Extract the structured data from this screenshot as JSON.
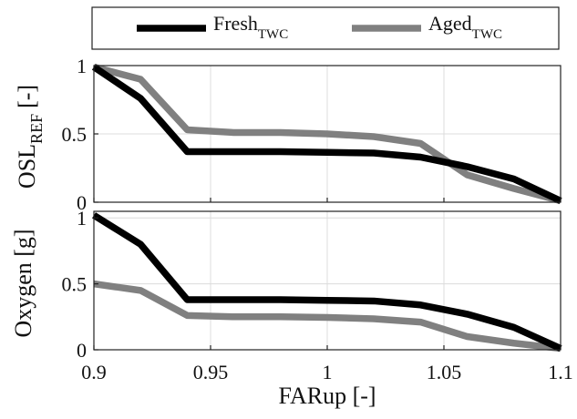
{
  "figure": {
    "legend": {
      "entries": [
        {
          "base": "Fresh",
          "sub": "TWC",
          "color": "#000000"
        },
        {
          "base": "Aged",
          "sub": "TWC",
          "color": "#808080"
        }
      ]
    },
    "xlabel": "FARup [-]"
  },
  "chart_data": [
    {
      "type": "line",
      "title": "",
      "xlabel": "",
      "ylabel": "OSL",
      "ylabel_sub": "REF",
      "ylabel_suffix": "[-]",
      "xlim": [
        0.9,
        1.1
      ],
      "ylim": [
        0,
        1
      ],
      "xticks": [
        0.9,
        0.95,
        1.0,
        1.05,
        1.1
      ],
      "xtick_labels": [
        "",
        "",
        "",
        "",
        ""
      ],
      "yticks": [
        0,
        0.5,
        1
      ],
      "ytick_labels": [
        "0",
        "0.5",
        "1"
      ],
      "grid": true,
      "legend_position": "above",
      "x": [
        0.9,
        0.92,
        0.94,
        0.96,
        0.98,
        1.0,
        1.02,
        1.04,
        1.06,
        1.08,
        1.1
      ],
      "series": [
        {
          "name": "Fresh TWC",
          "color": "#000000",
          "values": [
            0.99,
            0.76,
            0.37,
            0.37,
            0.37,
            0.365,
            0.36,
            0.33,
            0.26,
            0.17,
            0.01
          ]
        },
        {
          "name": "Aged TWC",
          "color": "#808080",
          "values": [
            0.99,
            0.9,
            0.53,
            0.51,
            0.51,
            0.5,
            0.48,
            0.43,
            0.2,
            0.1,
            0.01
          ]
        }
      ]
    },
    {
      "type": "line",
      "title": "",
      "xlabel": "FARup [-]",
      "ylabel": "Oxygen [g]",
      "xlim": [
        0.9,
        1.1
      ],
      "ylim": [
        0,
        1.05
      ],
      "xticks": [
        0.9,
        0.95,
        1.0,
        1.05,
        1.1
      ],
      "xtick_labels": [
        "0.9",
        "0.95",
        "1",
        "1.05",
        "1.1"
      ],
      "yticks": [
        0,
        0.5,
        1
      ],
      "ytick_labels": [
        "0",
        "0.5",
        "1"
      ],
      "grid": true,
      "x": [
        0.9,
        0.92,
        0.94,
        0.96,
        0.98,
        1.0,
        1.02,
        1.04,
        1.06,
        1.08,
        1.1
      ],
      "series": [
        {
          "name": "Fresh TWC",
          "color": "#000000",
          "values": [
            1.02,
            0.8,
            0.38,
            0.38,
            0.38,
            0.375,
            0.37,
            0.34,
            0.27,
            0.17,
            0.01
          ]
        },
        {
          "name": "Aged TWC",
          "color": "#808080",
          "values": [
            0.5,
            0.45,
            0.26,
            0.25,
            0.25,
            0.245,
            0.235,
            0.21,
            0.1,
            0.05,
            0.01
          ]
        }
      ]
    }
  ]
}
